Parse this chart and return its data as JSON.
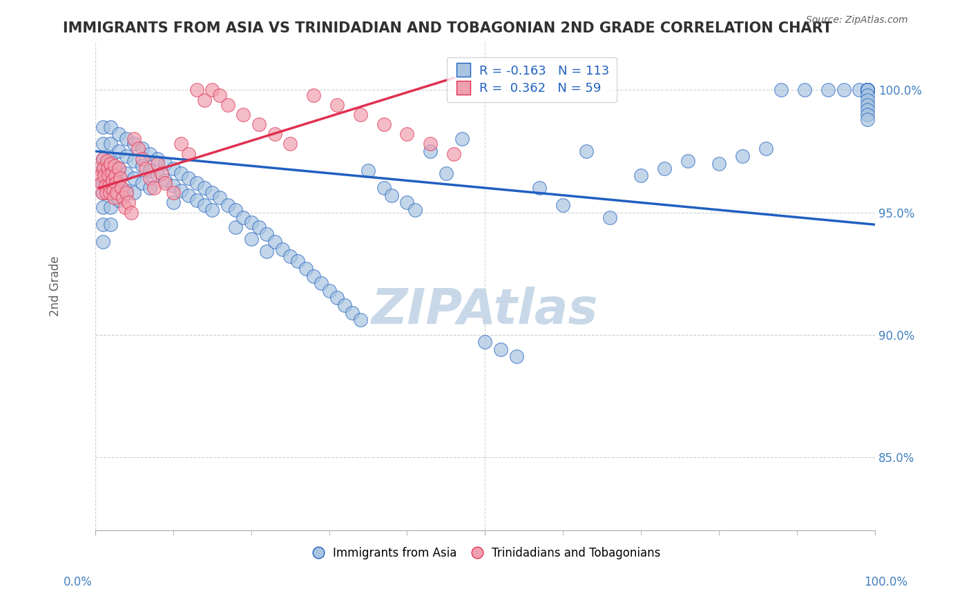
{
  "title": "IMMIGRANTS FROM ASIA VS TRINIDADIAN AND TOBAGONIAN 2ND GRADE CORRELATION CHART",
  "source_text": "Source: ZipAtlas.com",
  "xlabel": "",
  "ylabel": "2nd Grade",
  "x_min": 0.0,
  "x_max": 1.0,
  "y_min": 0.82,
  "y_max": 1.02,
  "y_ticks": [
    0.85,
    0.9,
    0.95,
    1.0
  ],
  "y_tick_labels": [
    "85.0%",
    "90.0%",
    "95.0%",
    "100.0%"
  ],
  "x_tick_labels": [
    "0.0%",
    "100.0%"
  ],
  "legend_r_blue": "-0.163",
  "legend_n_blue": "113",
  "legend_r_pink": "0.362",
  "legend_n_pink": "59",
  "blue_color": "#a8c4e0",
  "pink_color": "#f0a0b0",
  "blue_line_color": "#2060c0",
  "pink_line_color": "#e03050",
  "watermark_color": "#c8d8e8",
  "background_color": "#ffffff",
  "grid_color": "#d0d0d0",
  "title_color": "#303030",
  "axis_label_color": "#4080c0",
  "blue_scatter_x": [
    0.01,
    0.01,
    0.01,
    0.01,
    0.01,
    0.01,
    0.01,
    0.01,
    0.01,
    0.02,
    0.02,
    0.02,
    0.02,
    0.02,
    0.02,
    0.02,
    0.03,
    0.03,
    0.03,
    0.03,
    0.03,
    0.04,
    0.04,
    0.04,
    0.04,
    0.05,
    0.05,
    0.05,
    0.05,
    0.06,
    0.06,
    0.06,
    0.07,
    0.07,
    0.07,
    0.08,
    0.08,
    0.09,
    0.09,
    0.1,
    0.1,
    0.1,
    0.11,
    0.11,
    0.12,
    0.12,
    0.13,
    0.13,
    0.14,
    0.14,
    0.15,
    0.15,
    0.16,
    0.17,
    0.18,
    0.18,
    0.19,
    0.2,
    0.2,
    0.21,
    0.22,
    0.22,
    0.23,
    0.24,
    0.25,
    0.26,
    0.27,
    0.28,
    0.29,
    0.3,
    0.31,
    0.32,
    0.33,
    0.34,
    0.35,
    0.37,
    0.38,
    0.4,
    0.41,
    0.43,
    0.45,
    0.47,
    0.5,
    0.52,
    0.54,
    0.57,
    0.6,
    0.63,
    0.66,
    0.7,
    0.73,
    0.76,
    0.8,
    0.83,
    0.86,
    0.88,
    0.91,
    0.94,
    0.96,
    0.98,
    0.99,
    0.99,
    0.99,
    0.99,
    0.99,
    0.99,
    0.99,
    0.99,
    0.99,
    0.99,
    0.99,
    0.99,
    0.99,
    0.99,
    0.99
  ],
  "blue_scatter_y": [
    0.985,
    0.978,
    0.972,
    0.968,
    0.962,
    0.958,
    0.952,
    0.945,
    0.938,
    0.985,
    0.978,
    0.972,
    0.965,
    0.958,
    0.952,
    0.945,
    0.982,
    0.975,
    0.968,
    0.962,
    0.955,
    0.98,
    0.973,
    0.966,
    0.959,
    0.978,
    0.971,
    0.964,
    0.958,
    0.976,
    0.969,
    0.962,
    0.974,
    0.967,
    0.96,
    0.972,
    0.965,
    0.97,
    0.963,
    0.968,
    0.961,
    0.954,
    0.966,
    0.959,
    0.964,
    0.957,
    0.962,
    0.955,
    0.96,
    0.953,
    0.958,
    0.951,
    0.956,
    0.953,
    0.951,
    0.944,
    0.948,
    0.946,
    0.939,
    0.944,
    0.941,
    0.934,
    0.938,
    0.935,
    0.932,
    0.93,
    0.927,
    0.924,
    0.921,
    0.918,
    0.915,
    0.912,
    0.909,
    0.906,
    0.967,
    0.96,
    0.957,
    0.954,
    0.951,
    0.975,
    0.966,
    0.98,
    0.897,
    0.894,
    0.891,
    0.96,
    0.953,
    0.975,
    0.948,
    0.965,
    0.968,
    0.971,
    0.97,
    0.973,
    0.976,
    1.0,
    1.0,
    1.0,
    1.0,
    1.0,
    1.0,
    1.0,
    1.0,
    1.0,
    1.0,
    1.0,
    1.0,
    1.0,
    1.0,
    0.998,
    0.996,
    0.994,
    0.992,
    0.99,
    0.988
  ],
  "pink_scatter_x": [
    0.005,
    0.007,
    0.008,
    0.009,
    0.01,
    0.011,
    0.012,
    0.013,
    0.014,
    0.015,
    0.016,
    0.017,
    0.018,
    0.019,
    0.02,
    0.021,
    0.022,
    0.023,
    0.024,
    0.025,
    0.026,
    0.027,
    0.028,
    0.03,
    0.032,
    0.034,
    0.036,
    0.038,
    0.04,
    0.043,
    0.046,
    0.05,
    0.055,
    0.06,
    0.065,
    0.07,
    0.075,
    0.08,
    0.085,
    0.09,
    0.1,
    0.11,
    0.12,
    0.13,
    0.14,
    0.15,
    0.16,
    0.17,
    0.19,
    0.21,
    0.23,
    0.25,
    0.28,
    0.31,
    0.34,
    0.37,
    0.4,
    0.43,
    0.46
  ],
  "pink_scatter_y": [
    0.968,
    0.965,
    0.962,
    0.958,
    0.972,
    0.968,
    0.965,
    0.961,
    0.958,
    0.971,
    0.968,
    0.965,
    0.961,
    0.958,
    0.97,
    0.966,
    0.963,
    0.959,
    0.956,
    0.969,
    0.965,
    0.962,
    0.958,
    0.968,
    0.964,
    0.96,
    0.956,
    0.952,
    0.958,
    0.954,
    0.95,
    0.98,
    0.976,
    0.972,
    0.968,
    0.964,
    0.96,
    0.97,
    0.966,
    0.962,
    0.958,
    0.978,
    0.974,
    1.0,
    0.996,
    1.0,
    0.998,
    0.994,
    0.99,
    0.986,
    0.982,
    0.978,
    0.998,
    0.994,
    0.99,
    0.986,
    0.982,
    0.978,
    0.974
  ],
  "blue_trend_x": [
    0.0,
    1.0
  ],
  "blue_trend_y": [
    0.975,
    0.945
  ],
  "pink_trend_x": [
    0.005,
    0.46
  ],
  "pink_trend_y": [
    0.96,
    1.005
  ]
}
